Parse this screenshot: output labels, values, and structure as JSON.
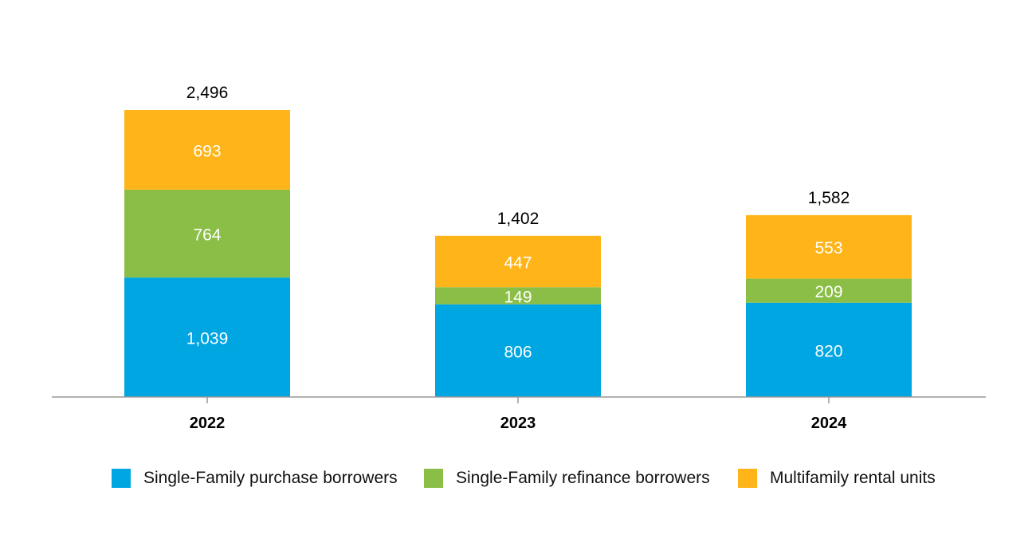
{
  "chart_data": {
    "type": "bar",
    "stacked": true,
    "categories": [
      "2022",
      "2023",
      "2024"
    ],
    "series": [
      {
        "name": "Single-Family purchase borrowers",
        "color": "#00a6e2",
        "values": [
          1039,
          806,
          820
        ],
        "labels": [
          "1,039",
          "806",
          "820"
        ]
      },
      {
        "name": "Single-Family refinance borrowers",
        "color": "#8bbe47",
        "values": [
          764,
          149,
          209
        ],
        "labels": [
          "764",
          "149",
          "209"
        ]
      },
      {
        "name": "Multifamily rental units",
        "color": "#ffb519",
        "values": [
          693,
          447,
          553
        ],
        "labels": [
          "693",
          "447",
          "553"
        ]
      }
    ],
    "totals": [
      2496,
      1402,
      1582
    ],
    "total_labels": [
      "2,496",
      "1,402",
      "1,582"
    ],
    "ylim": [
      0,
      2496
    ],
    "grid": false,
    "legend_position": "bottom"
  }
}
